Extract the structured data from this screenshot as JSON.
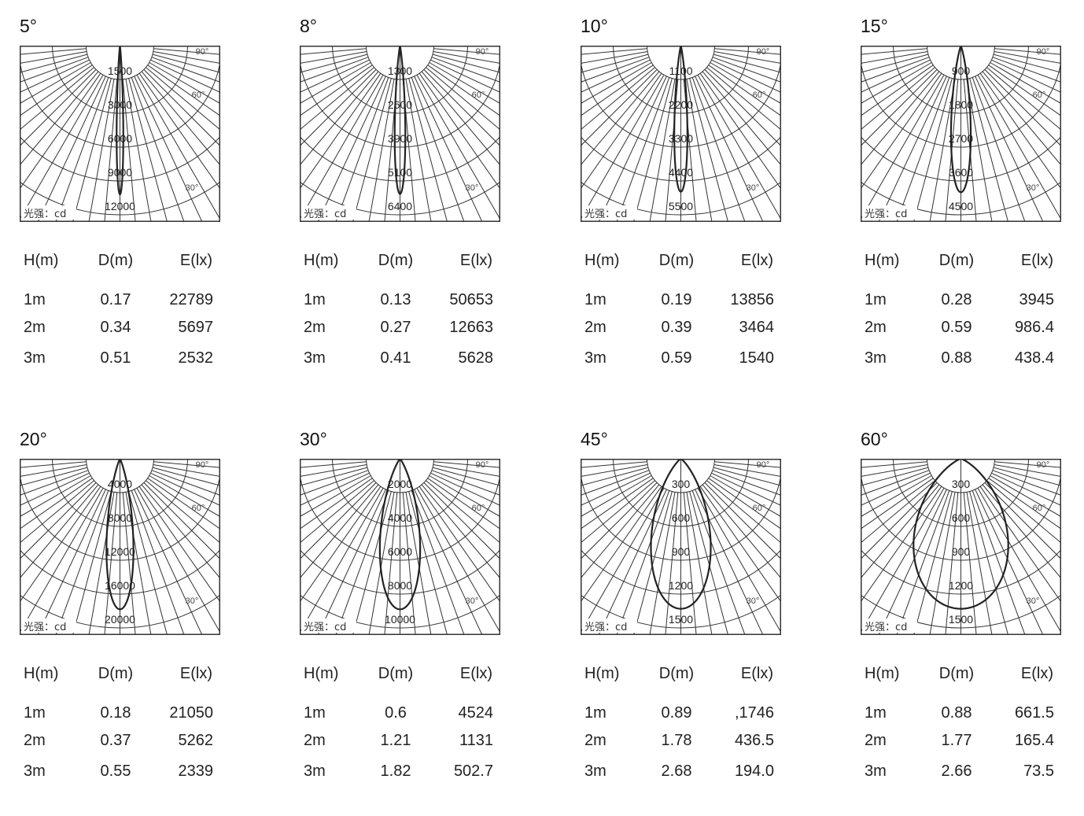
{
  "table_headers": [
    "H(m)",
    "D(m)",
    "E(lx)"
  ],
  "unit_label": "光强：cd",
  "angle_labels": [
    "90°",
    "60°",
    "30°"
  ],
  "chart_data": [
    {
      "type": "polar",
      "title": "5°",
      "beam_angle": 5,
      "ring_labels": [
        "1500",
        "3000",
        "6000",
        "9000",
        "12000"
      ],
      "peak_cd": 10200,
      "table": [
        [
          "1m",
          "0.17",
          "22789"
        ],
        [
          "2m",
          "0.34",
          "5697"
        ],
        [
          "3m",
          "0.51",
          "2532"
        ]
      ]
    },
    {
      "type": "polar",
      "title": "8°",
      "beam_angle": 8,
      "ring_labels": [
        "1300",
        "2600",
        "3900",
        "5100",
        "6400"
      ],
      "peak_cd": 5600,
      "table": [
        [
          "1m",
          "0.13",
          "50653"
        ],
        [
          "2m",
          "0.27",
          "12663"
        ],
        [
          "3m",
          "0.41",
          "5628"
        ]
      ]
    },
    {
      "type": "polar",
      "title": "10°",
      "beam_angle": 10,
      "ring_labels": [
        "1100",
        "2200",
        "3300",
        "4400",
        "5500"
      ],
      "peak_cd": 4750,
      "table": [
        [
          "1m",
          "0.19",
          "13856"
        ],
        [
          "2m",
          "0.39",
          "3464"
        ],
        [
          "3m",
          "0.59",
          "1540"
        ]
      ]
    },
    {
      "type": "polar",
      "title": "15°",
      "beam_angle": 15,
      "ring_labels": [
        "900",
        "1800",
        "2700",
        "3600",
        "4500"
      ],
      "peak_cd": 3900,
      "table": [
        [
          "1m",
          "0.28",
          "3945"
        ],
        [
          "2m",
          "0.59",
          "986.4"
        ],
        [
          "3m",
          "0.88",
          "438.4"
        ]
      ]
    },
    {
      "type": "polar",
      "title": "20°",
      "beam_angle": 20,
      "ring_labels": [
        "4000",
        "8000",
        "12000",
        "16000",
        "20000"
      ],
      "peak_cd": 17800,
      "table": [
        [
          "1m",
          "0.18",
          "21050"
        ],
        [
          "2m",
          "0.37",
          "5262"
        ],
        [
          "3m",
          "0.55",
          "2339"
        ]
      ]
    },
    {
      "type": "polar",
      "title": "30°",
      "beam_angle": 30,
      "ring_labels": [
        "2000",
        "4000",
        "6000",
        "8000",
        "10000"
      ],
      "peak_cd": 8900,
      "table": [
        [
          "1m",
          "0.6",
          "4524"
        ],
        [
          "2m",
          "1.21",
          "1131"
        ],
        [
          "3m",
          "1.82",
          "502.7"
        ]
      ]
    },
    {
      "type": "polar",
      "title": "45°",
      "beam_angle": 45,
      "ring_labels": [
        "300",
        "600",
        "900",
        "1200",
        "1500"
      ],
      "peak_cd": 1330,
      "table": [
        [
          "1m",
          "0.89",
          ",1746"
        ],
        [
          "2m",
          "1.78",
          "436.5"
        ],
        [
          "3m",
          "2.68",
          "194.0"
        ]
      ]
    },
    {
      "type": "polar",
      "title": "60°",
      "beam_angle": 60,
      "ring_labels": [
        "300",
        "600",
        "900",
        "1200",
        "1500"
      ],
      "peak_cd": 1330,
      "table": [
        [
          "1m",
          "0.88",
          "661.5"
        ],
        [
          "2m",
          "1.77",
          "165.4"
        ],
        [
          "3m",
          "2.66",
          "73.5"
        ]
      ]
    }
  ]
}
